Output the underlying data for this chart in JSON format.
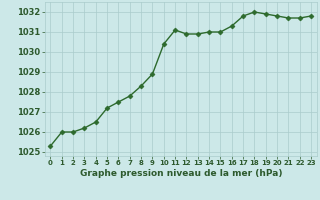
{
  "x": [
    0,
    1,
    2,
    3,
    4,
    5,
    6,
    7,
    8,
    9,
    10,
    11,
    12,
    13,
    14,
    15,
    16,
    17,
    18,
    19,
    20,
    21,
    22,
    23
  ],
  "y": [
    1025.3,
    1026.0,
    1026.0,
    1026.2,
    1026.5,
    1027.2,
    1027.5,
    1027.8,
    1028.3,
    1028.9,
    1030.4,
    1031.1,
    1030.9,
    1030.9,
    1031.0,
    1031.0,
    1031.3,
    1031.8,
    1032.0,
    1031.9,
    1031.8,
    1031.7,
    1031.7,
    1031.8
  ],
  "ylim": [
    1024.8,
    1032.5
  ],
  "xlim": [
    -0.5,
    23.5
  ],
  "yticks": [
    1025,
    1026,
    1027,
    1028,
    1029,
    1030,
    1031,
    1032
  ],
  "xticks": [
    0,
    1,
    2,
    3,
    4,
    5,
    6,
    7,
    8,
    9,
    10,
    11,
    12,
    13,
    14,
    15,
    16,
    17,
    18,
    19,
    20,
    21,
    22,
    23
  ],
  "xlabel": "Graphe pression niveau de la mer (hPa)",
  "line_color": "#2d6a2d",
  "marker": "D",
  "marker_size": 2.5,
  "bg_color": "#cce8e8",
  "grid_color": "#aacccc",
  "tick_label_color": "#2d5a2d",
  "xlabel_color": "#2d5a2d",
  "line_width": 1.0
}
